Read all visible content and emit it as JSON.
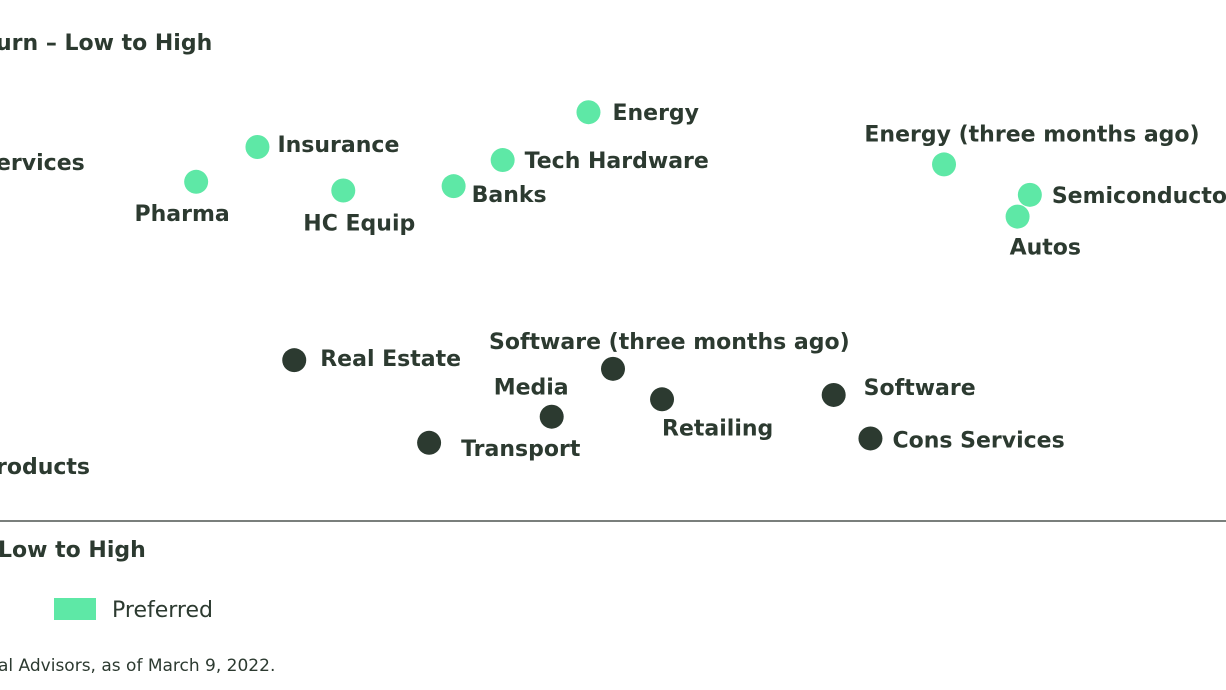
{
  "chart_data": {
    "type": "scatter",
    "y_axis_title": "urn – Low to High",
    "x_axis_title": "Low to High",
    "category_labels": {
      "top": "ervices",
      "bottom": "roducts"
    },
    "series": [
      {
        "name": "Preferred",
        "color": "#5ee8a6",
        "points": [
          {
            "label": "Energy",
            "x": 48,
            "y": 88
          },
          {
            "label": "Insurance",
            "x": 21,
            "y": 80
          },
          {
            "label": "Pharma",
            "x": 16,
            "y": 72
          },
          {
            "label": "HC Equip",
            "x": 28,
            "y": 70
          },
          {
            "label": "Banks",
            "x": 37,
            "y": 71
          },
          {
            "label": "Tech Hardware",
            "x": 41,
            "y": 77
          },
          {
            "label": "Energy (three months ago)",
            "x": 77,
            "y": 76
          },
          {
            "label": "Semiconductors",
            "x": 84,
            "y": 69
          },
          {
            "label": "Autos",
            "x": 83,
            "y": 64
          }
        ]
      },
      {
        "name": "",
        "color": "#2c3a30",
        "points": [
          {
            "label": "Real Estate",
            "x": 24,
            "y": 31
          },
          {
            "label": "Software (three months ago)",
            "x": 50,
            "y": 29
          },
          {
            "label": "Media",
            "x": 45,
            "y": 18
          },
          {
            "label": "Retailing",
            "x": 54,
            "y": 22
          },
          {
            "label": "Software",
            "x": 68,
            "y": 23
          },
          {
            "label": "Transport",
            "x": 35,
            "y": 12
          },
          {
            "label": "Cons Services",
            "x": 71,
            "y": 13
          }
        ]
      }
    ],
    "legend": [
      {
        "label": "Preferred",
        "color": "#5ee8a6"
      }
    ],
    "source": "al Advisors, as of March 9, 2022.",
    "grid": false,
    "xlim": [
      0,
      100
    ],
    "ylim": [
      0,
      100
    ]
  }
}
